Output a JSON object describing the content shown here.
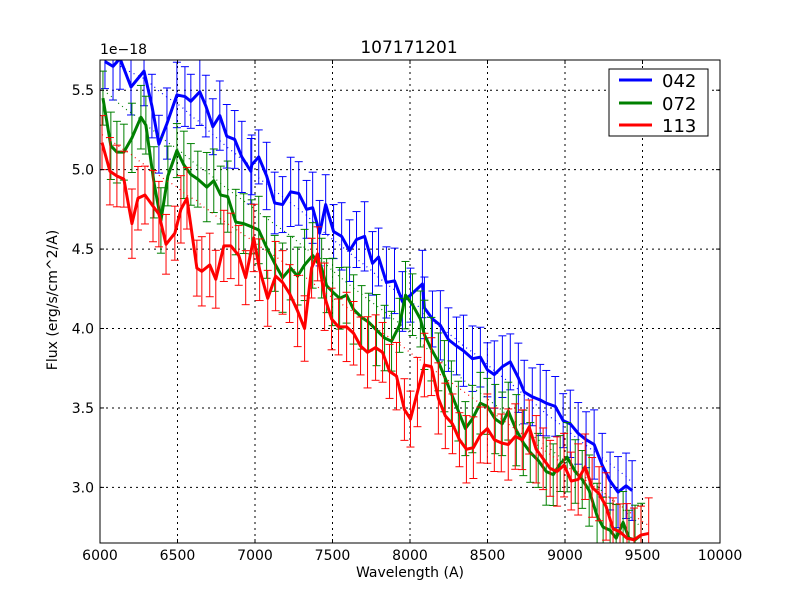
{
  "chart_data": {
    "type": "line",
    "title": "107171201",
    "xlabel": "Wavelength (A)",
    "ylabel": "Flux (erg/s/cm^2/A)",
    "y_offset_label": "1e−18",
    "xlim": [
      6000,
      10000
    ],
    "ylim": [
      2.65,
      5.69
    ],
    "x_ticks": [
      6000,
      6500,
      7000,
      7500,
      8000,
      8500,
      9000,
      9500,
      10000
    ],
    "x_tick_labels": [
      "6000",
      "6500",
      "7000",
      "7500",
      "8000",
      "8500",
      "9000",
      "9500",
      "10000"
    ],
    "y_ticks": [
      3.0,
      3.5,
      4.0,
      4.5,
      5.0,
      5.5
    ],
    "y_tick_labels": [
      "3.0",
      "3.5",
      "4.0",
      "4.5",
      "5.0",
      "5.5"
    ],
    "grid": true,
    "legend_position": "upper right",
    "series": [
      {
        "name": "042",
        "color": "#0000ff",
        "err": 0.2,
        "x": [
          6032,
          6084,
          6129,
          6200,
          6284,
          6335,
          6380,
          6432,
          6496,
          6548,
          6586,
          6644,
          6683,
          6728,
          6773,
          6818,
          6869,
          6915,
          6973,
          6979,
          7024,
          7075,
          7127,
          7178,
          7230,
          7282,
          7333,
          7372,
          7417,
          7456,
          7507,
          7559,
          7610,
          7655,
          7707,
          7758,
          7797,
          7848,
          7900,
          7951,
          8003,
          8080,
          8093,
          8145,
          8196,
          8248,
          8300,
          8345,
          8403,
          8454,
          8499,
          8544,
          8596,
          8647,
          8699,
          8737,
          8789,
          8840,
          8879,
          8937,
          8988,
          9034,
          9085,
          9136,
          9188,
          9240,
          9291,
          9342,
          9394,
          9433
        ],
        "y": [
          5.68,
          5.65,
          5.7,
          5.52,
          5.62,
          5.4,
          5.16,
          5.29,
          5.47,
          5.46,
          5.43,
          5.49,
          5.4,
          5.27,
          5.34,
          5.21,
          5.19,
          5.08,
          4.99,
          5.03,
          5.08,
          4.96,
          4.79,
          4.78,
          4.86,
          4.85,
          4.75,
          4.76,
          4.6,
          4.78,
          4.61,
          4.58,
          4.49,
          4.56,
          4.58,
          4.41,
          4.45,
          4.29,
          4.3,
          4.17,
          4.21,
          4.28,
          4.13,
          4.06,
          4.02,
          3.93,
          3.89,
          3.86,
          3.81,
          3.82,
          3.74,
          3.71,
          3.76,
          3.79,
          3.69,
          3.6,
          3.57,
          3.55,
          3.53,
          3.51,
          3.42,
          3.4,
          3.34,
          3.3,
          3.27,
          3.14,
          3.04,
          2.97,
          3.01,
          2.98
        ]
      },
      {
        "name": "072",
        "color": "#008000",
        "err": 0.2,
        "x": [
          6019,
          6070,
          6109,
          6154,
          6206,
          6264,
          6296,
          6348,
          6393,
          6438,
          6496,
          6541,
          6586,
          6631,
          6689,
          6734,
          6779,
          6824,
          6876,
          6927,
          6979,
          7024,
          7075,
          7127,
          7178,
          7230,
          7275,
          7320,
          7372,
          7430,
          7462,
          7501,
          7546,
          7591,
          7636,
          7688,
          7733,
          7784,
          7836,
          7881,
          7932,
          7971,
          8016,
          8067,
          8093,
          8138,
          8183,
          8222,
          8267,
          8312,
          8357,
          8402,
          8454,
          8499,
          8550,
          8595,
          8634,
          8686,
          8731,
          8776,
          8827,
          8879,
          8924,
          8969,
          9014,
          9066,
          9111,
          9156,
          9207,
          9246,
          9291,
          9330,
          9375,
          9413,
          9452,
          9491
        ],
        "y": [
          5.45,
          5.15,
          5.11,
          5.11,
          5.2,
          5.33,
          5.28,
          4.92,
          4.68,
          4.96,
          5.12,
          5.03,
          4.97,
          4.94,
          4.89,
          4.93,
          4.84,
          4.83,
          4.67,
          4.66,
          4.64,
          4.62,
          4.51,
          4.41,
          4.32,
          4.38,
          4.33,
          4.4,
          4.46,
          4.38,
          4.27,
          4.23,
          4.19,
          4.21,
          4.12,
          4.07,
          4.04,
          3.99,
          3.94,
          3.92,
          4.02,
          4.21,
          4.15,
          4.06,
          3.96,
          3.87,
          3.79,
          3.7,
          3.59,
          3.48,
          3.37,
          3.43,
          3.53,
          3.51,
          3.43,
          3.4,
          3.48,
          3.36,
          3.28,
          3.22,
          3.17,
          3.1,
          3.08,
          3.15,
          3.19,
          3.1,
          3.05,
          2.98,
          2.82,
          2.75,
          2.73,
          2.68,
          2.78,
          2.68,
          2.67,
          2.7
        ]
      },
      {
        "name": "113",
        "color": "#ff0000",
        "err": 0.2,
        "x": [
          6013,
          6064,
          6109,
          6154,
          6206,
          6245,
          6290,
          6342,
          6380,
          6426,
          6483,
          6522,
          6561,
          6625,
          6657,
          6708,
          6747,
          6799,
          6844,
          6895,
          6940,
          6992,
          7030,
          7082,
          7133,
          7178,
          7223,
          7275,
          7320,
          7365,
          7404,
          7449,
          7494,
          7539,
          7591,
          7636,
          7681,
          7726,
          7778,
          7823,
          7868,
          7913,
          7964,
          8003,
          8048,
          8093,
          8138,
          8183,
          8228,
          8274,
          8319,
          8364,
          8409,
          8454,
          8499,
          8544,
          8589,
          8634,
          8679,
          8724,
          8769,
          8814,
          8859,
          8904,
          8949,
          8994,
          9040,
          9085,
          9130,
          9175,
          9220,
          9265,
          9310,
          9355,
          9400,
          9445,
          9490,
          9540
        ],
        "y": [
          5.17,
          4.99,
          4.96,
          4.94,
          4.66,
          4.82,
          4.84,
          4.77,
          4.72,
          4.53,
          4.6,
          4.75,
          4.82,
          4.38,
          4.36,
          4.4,
          4.31,
          4.52,
          4.52,
          4.46,
          4.32,
          4.57,
          4.37,
          4.19,
          4.33,
          4.29,
          4.22,
          4.11,
          4.0,
          4.38,
          4.47,
          4.2,
          4.06,
          4.01,
          4.01,
          3.97,
          3.89,
          3.85,
          3.88,
          3.85,
          3.73,
          3.7,
          3.49,
          3.43,
          3.6,
          3.77,
          3.76,
          3.56,
          3.45,
          3.4,
          3.3,
          3.24,
          3.25,
          3.33,
          3.37,
          3.3,
          3.28,
          3.27,
          3.32,
          3.3,
          3.38,
          3.24,
          3.18,
          3.12,
          3.1,
          3.14,
          3.04,
          3.05,
          3.13,
          3.0,
          2.96,
          2.88,
          2.74,
          2.72,
          2.68,
          2.67,
          2.7,
          2.71
        ]
      }
    ]
  },
  "legend": {
    "items": [
      {
        "label": "042",
        "color": "#0000ff"
      },
      {
        "label": "072",
        "color": "#008000"
      },
      {
        "label": "113",
        "color": "#ff0000"
      }
    ]
  }
}
